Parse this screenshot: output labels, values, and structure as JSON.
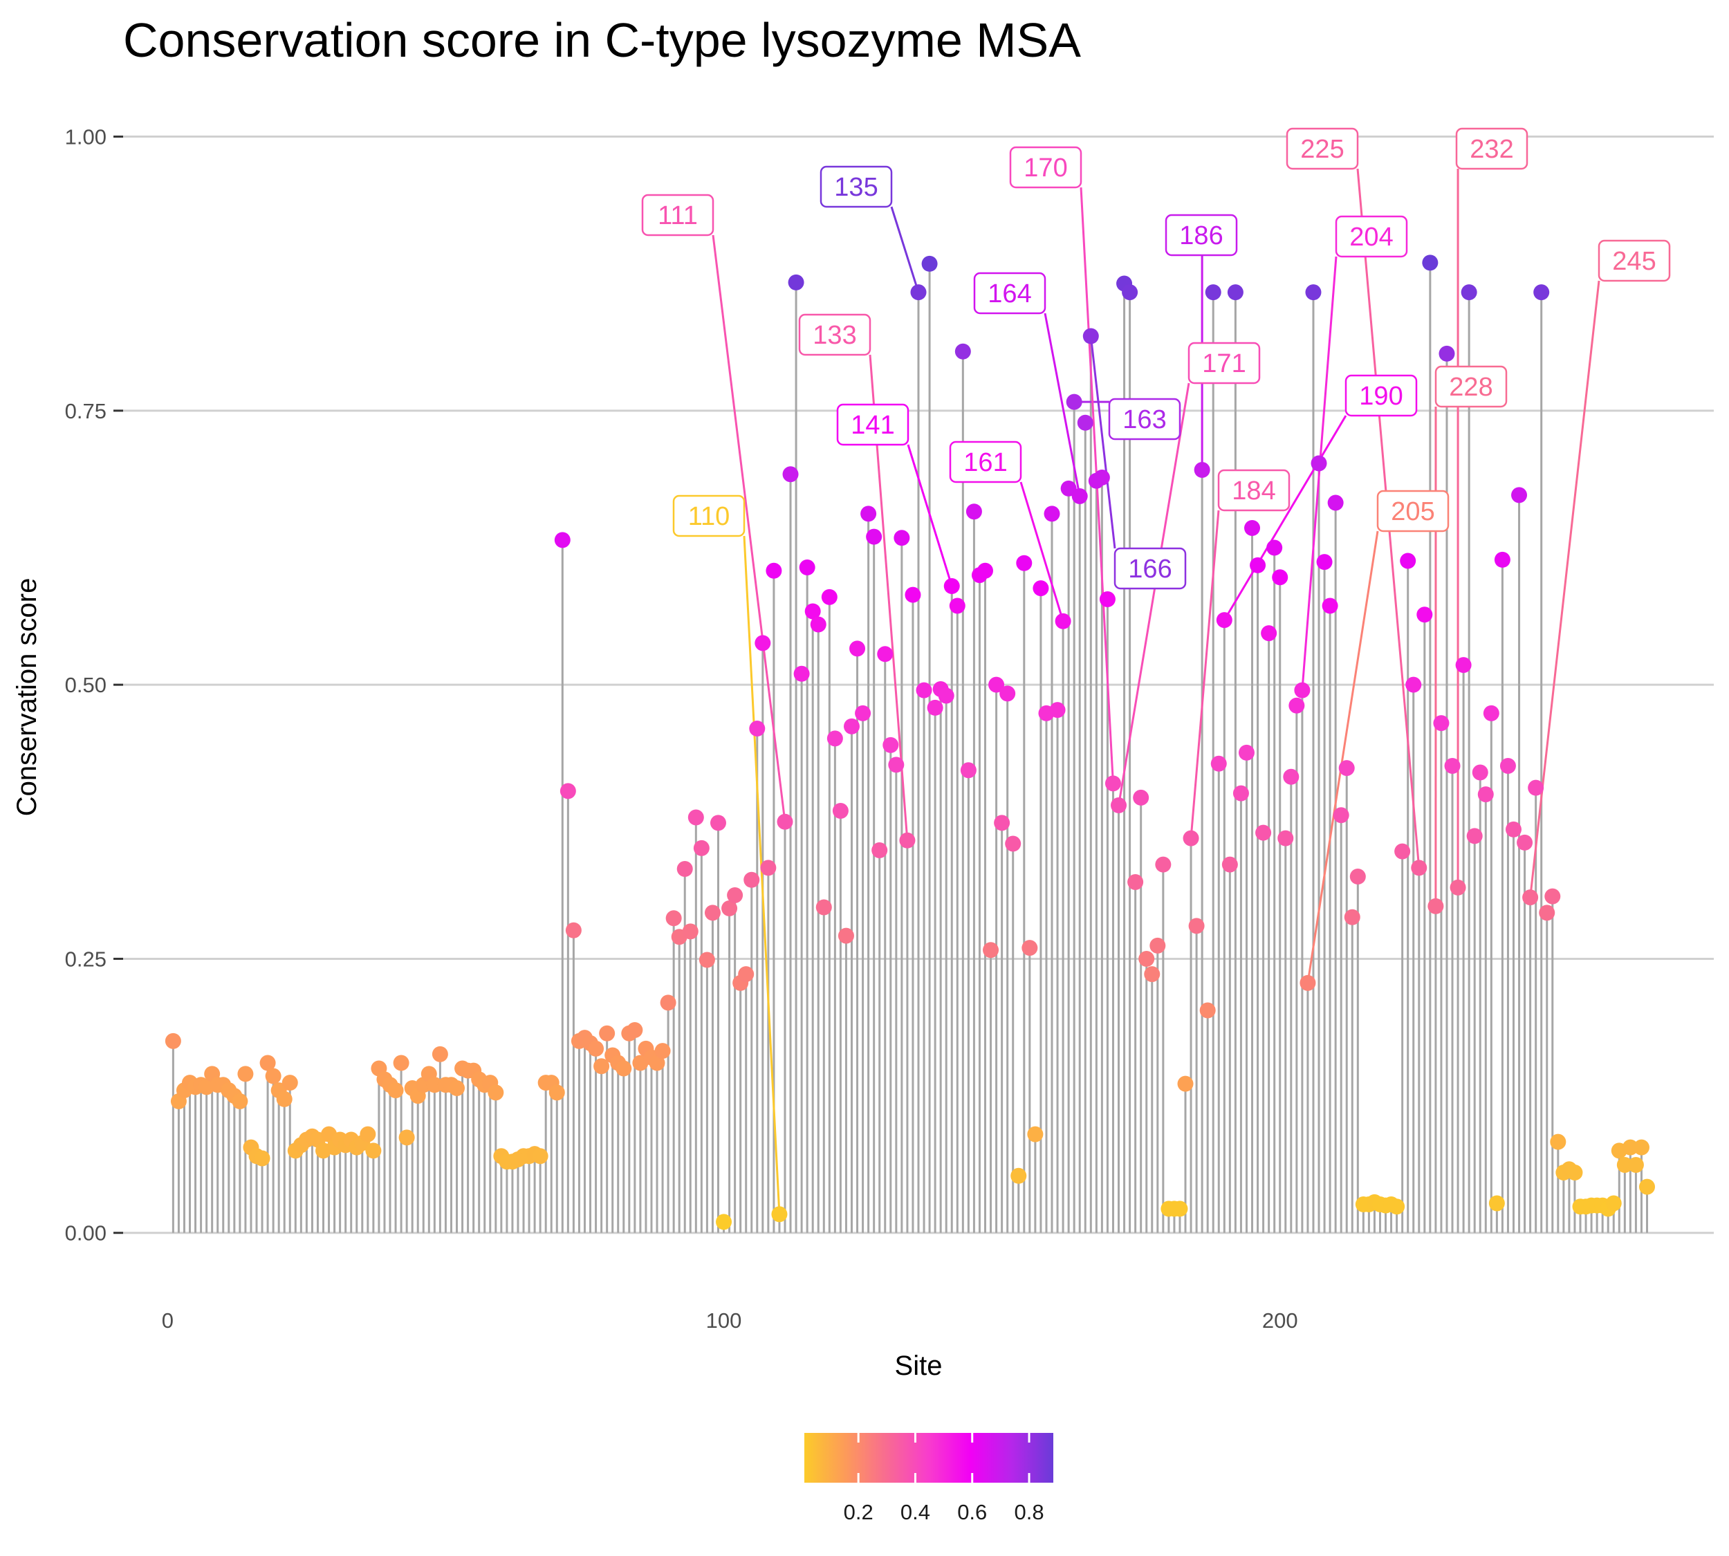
{
  "chart_data": {
    "type": "scatter",
    "subtype": "lollipop",
    "title": "Conservation score in C-type lysozyme MSA",
    "xlabel": "Site",
    "ylabel": "Conservation score",
    "xlim": [
      -8,
      278
    ],
    "ylim": [
      -0.05,
      1.03
    ],
    "x_ticks": [
      0,
      100,
      200
    ],
    "x_tick_labels": [
      "0",
      "100",
      "200"
    ],
    "y_ticks": [
      0,
      0.25,
      0.5,
      0.75,
      1.0
    ],
    "y_tick_labels": [
      "0.00",
      "0.25",
      "0.50",
      "0.75",
      "1.00"
    ],
    "grid": "horizontal major",
    "legend": {
      "position": "bottom",
      "type": "colorbar",
      "range": [
        0.01,
        0.885
      ],
      "ticks": [
        0.2,
        0.4,
        0.6,
        0.8
      ],
      "tick_labels": [
        "0.2",
        "0.4",
        "0.6",
        "0.8"
      ],
      "colors": [
        "#fccb2a",
        "#fd9a5a",
        "#f86a93",
        "#f83ccd",
        "#f200f5",
        "#b626ea",
        "#6a3bd8"
      ]
    },
    "stem_color": "#a6a6a6",
    "gridline_color": "#d0d0d0",
    "values": [
      0.175,
      0.12,
      0.13,
      0.137,
      0.133,
      0.135,
      0.133,
      0.145,
      0.135,
      0.135,
      0.13,
      0.125,
      0.12,
      0.145,
      0.078,
      0.07,
      0.068,
      0.155,
      0.143,
      0.13,
      0.122,
      0.137,
      0.075,
      0.08,
      0.085,
      0.088,
      0.085,
      0.075,
      0.09,
      0.078,
      0.085,
      0.08,
      0.085,
      0.078,
      0.082,
      0.09,
      0.075,
      0.15,
      0.14,
      0.135,
      0.13,
      0.155,
      0.087,
      0.132,
      0.125,
      0.135,
      0.145,
      0.135,
      0.163,
      0.135,
      0.135,
      0.132,
      0.15,
      0.148,
      0.148,
      0.14,
      0.135,
      0.137,
      0.128,
      0.07,
      0.065,
      0.065,
      0.067,
      0.07,
      0.07,
      0.072,
      0.07,
      0.137,
      0.137,
      0.128,
      0.632,
      0.403,
      0.276,
      0.175,
      0.178,
      0.173,
      0.168,
      0.152,
      0.182,
      0.162,
      0.155,
      0.15,
      0.182,
      0.185,
      0.155,
      0.168,
      0.16,
      0.155,
      0.166,
      0.21,
      0.287,
      0.27,
      0.332,
      0.275,
      0.379,
      0.351,
      0.249,
      0.292,
      0.374,
      0.01,
      0.296,
      0.308,
      0.228,
      0.236,
      0.322,
      0.46,
      0.538,
      0.333,
      0.604,
      0.017,
      0.375,
      0.692,
      0.867,
      0.51,
      0.607,
      0.567,
      0.555,
      0.297,
      0.58,
      0.451,
      0.385,
      0.271,
      0.462,
      0.533,
      0.474,
      0.656,
      0.635,
      0.349,
      0.528,
      0.445,
      0.427,
      0.634,
      0.358,
      0.582,
      0.858,
      0.495,
      0.884,
      0.479,
      0.496,
      0.49,
      0.59,
      0.572,
      0.804,
      0.422,
      0.658,
      0.6,
      0.604,
      0.258,
      0.5,
      0.374,
      0.492,
      0.355,
      0.052,
      0.611,
      0.26,
      0.09,
      0.588,
      0.474,
      0.656,
      0.477,
      0.558,
      0.679,
      0.758,
      0.672,
      0.739,
      0.818,
      0.686,
      0.689,
      0.578,
      0.41,
      0.39,
      0.866,
      0.858,
      0.32,
      0.397,
      0.25,
      0.236,
      0.262,
      0.336,
      0.022,
      0.022,
      0.022,
      0.136,
      0.36,
      0.28,
      0.696,
      0.203,
      0.858,
      0.428,
      0.559,
      0.336,
      0.858,
      0.401,
      0.438,
      0.643,
      0.609,
      0.365,
      0.547,
      0.625,
      0.598,
      0.36,
      0.416,
      0.481,
      0.495,
      0.228,
      0.858,
      0.702,
      0.612,
      0.572,
      0.666,
      0.381,
      0.424,
      0.288,
      0.325,
      0.026,
      0.026,
      0.028,
      0.026,
      0.025,
      0.026,
      0.024,
      0.348,
      0.613,
      0.5,
      0.333,
      0.564,
      0.885,
      0.298,
      0.465,
      0.802,
      0.426,
      0.315,
      0.518,
      0.858,
      0.362,
      0.42,
      0.4,
      0.474,
      0.027,
      0.614,
      0.426,
      0.368,
      0.673,
      0.356,
      0.306,
      0.406,
      0.858,
      0.292,
      0.307,
      0.083,
      0.055,
      0.058,
      0.055,
      0.024,
      0.024,
      0.025,
      0.025,
      0.025,
      0.022,
      0.027,
      0.075,
      0.062,
      0.078,
      0.062,
      0.078,
      0.042
    ],
    "annotations": [
      {
        "label": "110",
        "site": 110
      },
      {
        "label": "111",
        "site": 111
      },
      {
        "label": "133",
        "site": 133
      },
      {
        "label": "135",
        "site": 135
      },
      {
        "label": "141",
        "site": 141
      },
      {
        "label": "161",
        "site": 161
      },
      {
        "label": "163",
        "site": 163
      },
      {
        "label": "164",
        "site": 164
      },
      {
        "label": "166",
        "site": 166
      },
      {
        "label": "170",
        "site": 170
      },
      {
        "label": "171",
        "site": 171
      },
      {
        "label": "184",
        "site": 184
      },
      {
        "label": "186",
        "site": 186
      },
      {
        "label": "190",
        "site": 190
      },
      {
        "label": "204",
        "site": 204
      },
      {
        "label": "205",
        "site": 205
      },
      {
        "label": "225",
        "site": 225
      },
      {
        "label": "228",
        "site": 228
      },
      {
        "label": "232",
        "site": 232
      },
      {
        "label": "245",
        "site": 245
      }
    ]
  }
}
